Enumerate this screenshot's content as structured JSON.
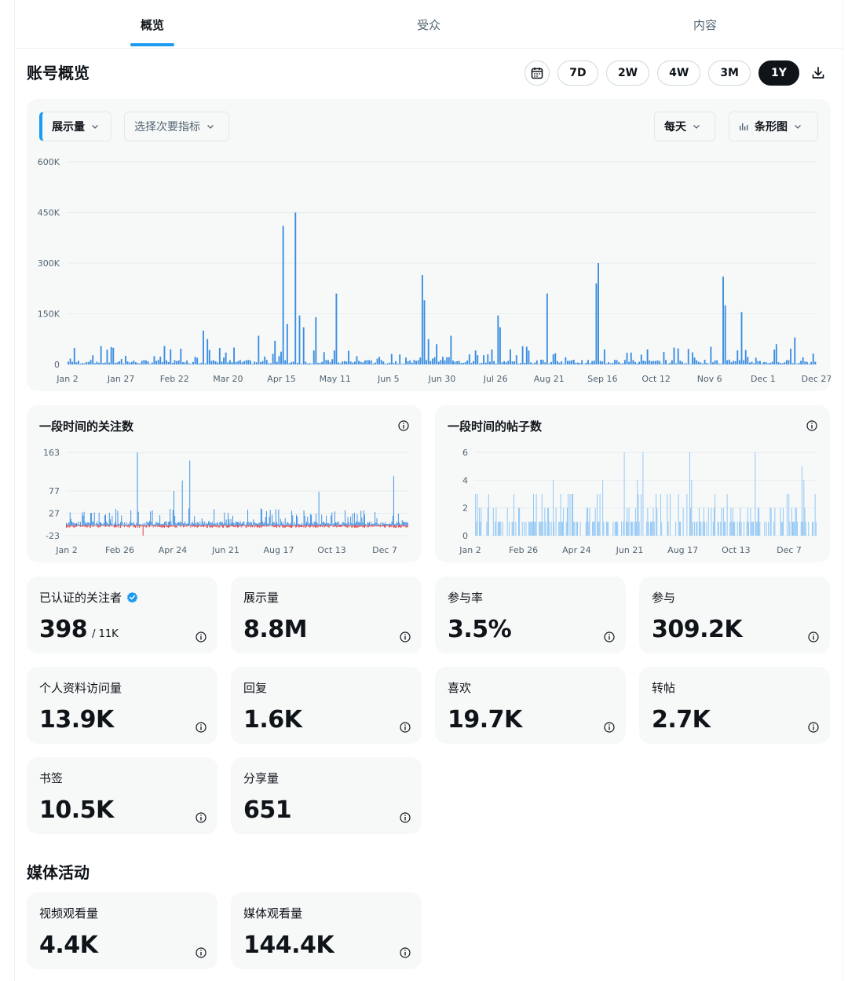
{
  "tabs": [
    {
      "label": "概览",
      "active": true
    },
    {
      "label": "受众",
      "active": false
    },
    {
      "label": "内容",
      "active": false
    }
  ],
  "account_overview": {
    "title": "账号概览",
    "ranges": [
      "7D",
      "2W",
      "4W",
      "3M",
      "1Y"
    ],
    "selected_range": "1Y",
    "icons": [
      "calendar-icon",
      "download-icon"
    ]
  },
  "main_chart": {
    "controls": {
      "primary_metric": "展示量",
      "secondary_metric_placeholder": "选择次要指标",
      "interval": "每天",
      "chart_style": "条形图"
    }
  },
  "chart_data": [
    {
      "type": "bar",
      "ylim": [
        0,
        600000
      ],
      "y_ticks": [
        "600K",
        "450K",
        "300K",
        "150K",
        "0"
      ],
      "x_ticks": [
        "Jan 2",
        "Jan 27",
        "Feb 22",
        "Mar 20",
        "Apr 15",
        "May 11",
        "Jun 5",
        "Jun 30",
        "Jul 26",
        "Aug 21",
        "Sep 16",
        "Oct 12",
        "Nov 6",
        "Dec 1",
        "Dec 27"
      ],
      "color": "#3b8de0",
      "grid": true,
      "peaks": [
        {
          "day": 66,
          "value": 100000
        },
        {
          "day": 68,
          "value": 75000
        },
        {
          "day": 93,
          "value": 85000
        },
        {
          "day": 101,
          "value": 70000
        },
        {
          "day": 105,
          "value": 410000
        },
        {
          "day": 107,
          "value": 120000
        },
        {
          "day": 111,
          "value": 450000
        },
        {
          "day": 113,
          "value": 145000
        },
        {
          "day": 115,
          "value": 110000
        },
        {
          "day": 121,
          "value": 140000
        },
        {
          "day": 131,
          "value": 210000
        },
        {
          "day": 173,
          "value": 265000
        },
        {
          "day": 174,
          "value": 190000
        },
        {
          "day": 176,
          "value": 75000
        },
        {
          "day": 180,
          "value": 60000
        },
        {
          "day": 187,
          "value": 85000
        },
        {
          "day": 210,
          "value": 145000
        },
        {
          "day": 211,
          "value": 110000
        },
        {
          "day": 234,
          "value": 210000
        },
        {
          "day": 258,
          "value": 240000
        },
        {
          "day": 259,
          "value": 300000
        },
        {
          "day": 296,
          "value": 50000
        },
        {
          "day": 320,
          "value": 260000
        },
        {
          "day": 321,
          "value": 175000
        },
        {
          "day": 329,
          "value": 155000
        },
        {
          "day": 346,
          "value": 60000
        },
        {
          "day": 355,
          "value": 80000
        }
      ]
    },
    {
      "type": "bar",
      "title": "一段时间的关注数",
      "ylim": [
        -23,
        163
      ],
      "y_ticks": [
        "163",
        "77",
        "27",
        "-23"
      ],
      "x_ticks": [
        "Jan 2",
        "Feb 26",
        "Apr 24",
        "Jun 21",
        "Aug 17",
        "Oct 13",
        "Dec 7"
      ],
      "series": [
        {
          "name": "",
          "color": "#3b8de0",
          "peaks": [
            {
              "day": 76,
              "value": 163
            },
            {
              "day": 132,
              "value": 145
            },
            {
              "day": 124,
              "value": 100
            },
            {
              "day": 115,
              "value": 77
            },
            {
              "day": 350,
              "value": 110
            },
            {
              "day": 270,
              "value": 75
            }
          ]
        },
        {
          "name": "",
          "color": "#e0383e",
          "peaks": [
            {
              "day": 82,
              "value": -23
            }
          ]
        }
      ]
    },
    {
      "type": "bar",
      "title": "一段时间的帖子数",
      "ylim": [
        0,
        6
      ],
      "y_ticks": [
        "6",
        "4",
        "2",
        "0"
      ],
      "x_ticks": [
        "Jan 2",
        "Feb 26",
        "Apr 24",
        "Jun 21",
        "Aug 17",
        "Oct 13",
        "Dec 7"
      ],
      "color": "#8ec5f4",
      "peaks": [
        {
          "day": 160,
          "value": 6
        },
        {
          "day": 180,
          "value": 6
        },
        {
          "day": 230,
          "value": 6
        },
        {
          "day": 300,
          "value": 6
        },
        {
          "day": 350,
          "value": 5
        }
      ]
    }
  ],
  "stats": [
    {
      "label": "已认证的关注者",
      "value": "398",
      "sub": "/ 11K",
      "verified": true
    },
    {
      "label": "展示量",
      "value": "8.8M"
    },
    {
      "label": "参与率",
      "value": "3.5%"
    },
    {
      "label": "参与",
      "value": "309.2K"
    },
    {
      "label": "个人资料访问量",
      "value": "13.9K"
    },
    {
      "label": "回复",
      "value": "1.6K"
    },
    {
      "label": "喜欢",
      "value": "19.7K"
    },
    {
      "label": "转帖",
      "value": "2.7K"
    },
    {
      "label": "书签",
      "value": "10.5K"
    },
    {
      "label": "分享量",
      "value": "651"
    }
  ],
  "media": {
    "title": "媒体活动",
    "stats": [
      {
        "label": "视频观看量",
        "value": "4.4K"
      },
      {
        "label": "媒体观看量",
        "value": "144.4K"
      }
    ]
  }
}
